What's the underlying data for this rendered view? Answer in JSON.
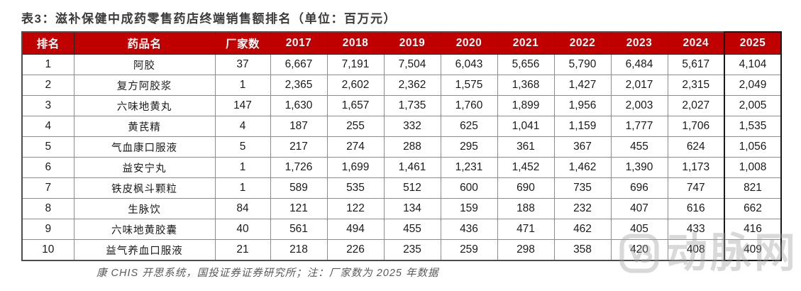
{
  "title": "表3：滋补保健中成药零售药店终端销售额排名（单位：百万元）",
  "table": {
    "headers": [
      "排名",
      "药品名",
      "厂家数",
      "2017",
      "2018",
      "2019",
      "2020",
      "2021",
      "2022",
      "2023",
      "2024",
      "2025"
    ],
    "highlight_column": "2025",
    "rows": [
      {
        "rank": "1",
        "name": "阿胶",
        "manufacturers": "37",
        "values": [
          "6,667",
          "7,191",
          "7,504",
          "6,043",
          "5,656",
          "5,790",
          "6,484",
          "5,617",
          "4,104"
        ]
      },
      {
        "rank": "2",
        "name": "复方阿胶浆",
        "manufacturers": "1",
        "values": [
          "2,365",
          "2,602",
          "2,362",
          "1,575",
          "1,368",
          "1,427",
          "2,017",
          "2,315",
          "2,049"
        ]
      },
      {
        "rank": "3",
        "name": "六味地黄丸",
        "manufacturers": "147",
        "values": [
          "1,630",
          "1,657",
          "1,735",
          "1,760",
          "1,899",
          "1,956",
          "2,003",
          "2,027",
          "2,005"
        ]
      },
      {
        "rank": "4",
        "name": "黄芪精",
        "manufacturers": "4",
        "values": [
          "187",
          "255",
          "332",
          "625",
          "1,041",
          "1,159",
          "1,777",
          "1,706",
          "1,535"
        ]
      },
      {
        "rank": "5",
        "name": "气血康口服液",
        "manufacturers": "5",
        "values": [
          "217",
          "274",
          "288",
          "295",
          "361",
          "367",
          "455",
          "624",
          "1,056"
        ]
      },
      {
        "rank": "6",
        "name": "益安宁丸",
        "manufacturers": "1",
        "values": [
          "1,726",
          "1,699",
          "1,461",
          "1,231",
          "1,452",
          "1,462",
          "1,390",
          "1,173",
          "1,008"
        ]
      },
      {
        "rank": "7",
        "name": "铁皮枫斗颗粒",
        "manufacturers": "1",
        "values": [
          "589",
          "535",
          "512",
          "600",
          "690",
          "735",
          "696",
          "747",
          "821"
        ]
      },
      {
        "rank": "8",
        "name": "生脉饮",
        "manufacturers": "84",
        "values": [
          "121",
          "122",
          "134",
          "159",
          "188",
          "232",
          "407",
          "616",
          "662"
        ]
      },
      {
        "rank": "9",
        "name": "六味地黄胶囊",
        "manufacturers": "40",
        "values": [
          "561",
          "494",
          "455",
          "436",
          "471",
          "462",
          "405",
          "433",
          "416"
        ]
      },
      {
        "rank": "10",
        "name": "益气养血口服液",
        "manufacturers": "21",
        "values": [
          "218",
          "226",
          "235",
          "259",
          "298",
          "358",
          "420",
          "408",
          "409"
        ]
      }
    ]
  },
  "footer": {
    "source_note": "康 CHIS 开思系统，国投证券证券研究所；注：厂家数为 2025 年数据"
  },
  "watermark": {
    "text": "动脉网"
  },
  "colors": {
    "header_bg": "#c00000",
    "header_text": "#ffffff",
    "title_text": "#3b3b3b",
    "cell_text": "#1a1a1a",
    "border_gray": "#8c8c8c",
    "border_dark": "#1a1a1a",
    "footer_text": "#595959"
  }
}
